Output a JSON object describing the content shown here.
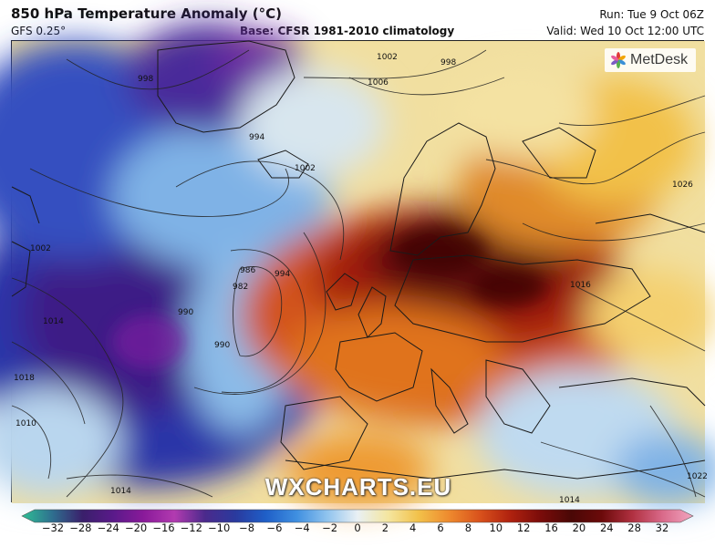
{
  "header": {
    "title": "850 hPa Temperature Anomaly (°C)",
    "model": "GFS 0.25°",
    "base": "Base: CFSR 1981-2010 climatology",
    "run": "Run: Tue 9 Oct 06Z",
    "valid": "Valid: Wed 10 Oct 12:00 UTC"
  },
  "logo": {
    "text": "MetDesk",
    "icon": "metdesk-star-icon",
    "colors": [
      "#e03a3a",
      "#f2a400",
      "#3a8fd6",
      "#55b04a",
      "#7a5cc4",
      "#e85e9b"
    ]
  },
  "watermark": "WXCHARTS.EU",
  "isobars": [
    "998",
    "1002",
    "1006",
    "998",
    "994",
    "990",
    "1002",
    "994",
    "986",
    "982",
    "990",
    "1002",
    "1014",
    "1018",
    "1010",
    "1014",
    "1014",
    "1016",
    "1026",
    "1022"
  ],
  "colorbar": {
    "ticks": [
      "−32",
      "−28",
      "−24",
      "−20",
      "−16",
      "−12",
      "−10",
      "−8",
      "−6",
      "−4",
      "−2",
      "0",
      "2",
      "4",
      "6",
      "8",
      "10",
      "12",
      "16",
      "20",
      "24",
      "28",
      "32"
    ],
    "colors": [
      "#2fbf95",
      "#2f6f8f",
      "#3a1f6b",
      "#5a1a8a",
      "#8a1a9a",
      "#b23bb0",
      "#4b2a8c",
      "#2a3a9e",
      "#1f5fc8",
      "#3f8fe0",
      "#8fc3ee",
      "#e9f0f4",
      "#f4e6a0",
      "#f2c14a",
      "#ee8a2e",
      "#d9521c",
      "#b0220f",
      "#7a0c0a",
      "#4a0806",
      "#6b0a0a",
      "#b03040",
      "#d96a8a",
      "#f2a6c0"
    ]
  }
}
